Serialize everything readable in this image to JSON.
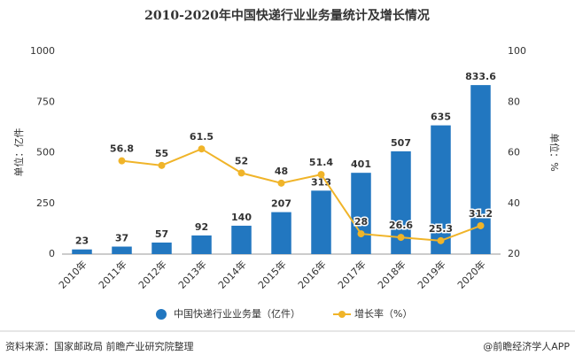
{
  "chart_data": {
    "type": "bar_line",
    "title": "2010-2020年中国快递行业业务量统计及增长情况",
    "categories": [
      "2010年",
      "2011年",
      "2012年",
      "2013年",
      "2014年",
      "2015年",
      "2016年",
      "2017年",
      "2018年",
      "2019年",
      "2020年"
    ],
    "series": [
      {
        "name": "中国快递行业业务量（亿件）",
        "type": "bar",
        "color": "#2277c0",
        "values": [
          23,
          37,
          57,
          92,
          140,
          207,
          313,
          401,
          507,
          635,
          833.6
        ]
      },
      {
        "name": "增长率（%）",
        "type": "line",
        "axis": "y2",
        "color": "#f0b429",
        "values": [
          null,
          56.8,
          55,
          61.5,
          52,
          48,
          51.4,
          28,
          26.6,
          25.3,
          31.2
        ]
      }
    ],
    "ylabel": "单位：亿件",
    "y2label": "单位：%",
    "ylim": [
      0,
      1000
    ],
    "yticks": [
      0,
      250,
      500,
      750,
      1000
    ],
    "y2lim": [
      20,
      100
    ],
    "y2ticks": [
      20,
      40,
      60,
      80,
      100
    ],
    "legend": "bottom",
    "source": "资料来源：国家邮政局 前瞻产业研究院整理",
    "credit": "@前瞻经济学人APP"
  }
}
